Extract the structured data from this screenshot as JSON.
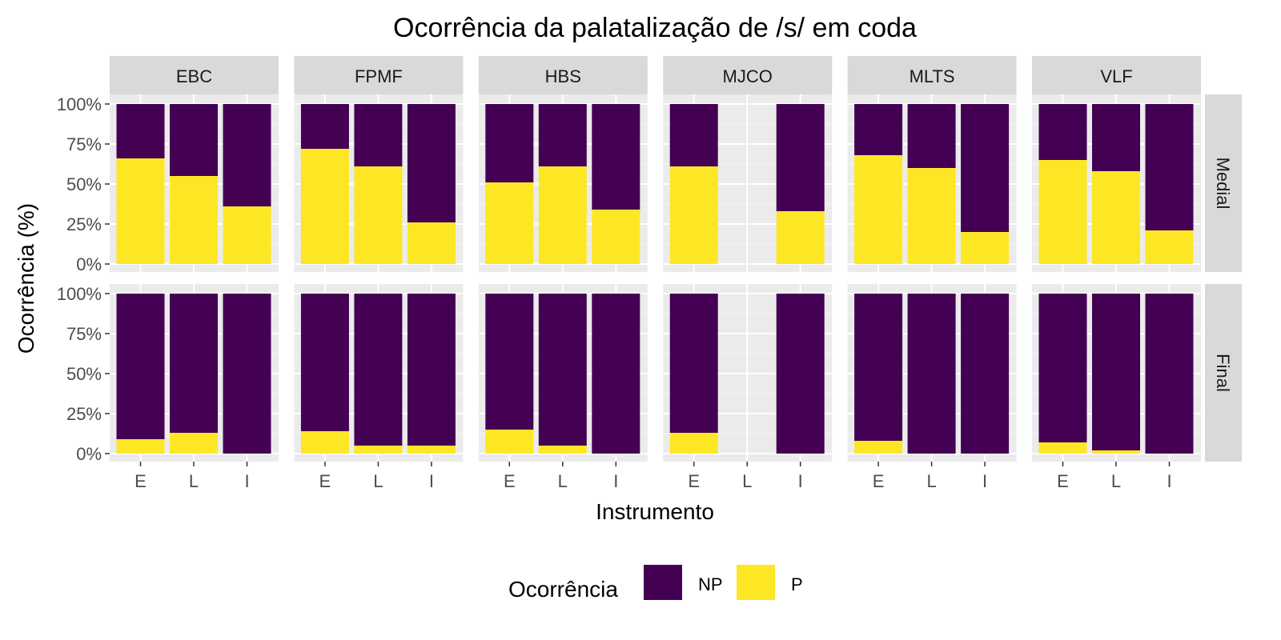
{
  "chart_data": {
    "type": "bar",
    "stacked": true,
    "faceted": true,
    "title": "Ocorrência da palatalização de /s/ em coda",
    "xlabel": "Instrumento",
    "ylabel": "Ocorrência (%)",
    "categories": [
      "E",
      "L",
      "I"
    ],
    "y_ticks": [
      "0%",
      "25%",
      "50%",
      "75%",
      "100%"
    ],
    "ylim": [
      0,
      100
    ],
    "grid": true,
    "legend": {
      "title": "Ocorrência",
      "position": "bottom",
      "entries": [
        {
          "name": "NP",
          "color": "#440154"
        },
        {
          "name": "P",
          "color": "#FDE725"
        }
      ]
    },
    "facet_cols": [
      "EBC",
      "FPMF",
      "HBS",
      "MJCO",
      "MLTS",
      "VLF"
    ],
    "facet_rows": [
      "Medial",
      "Final"
    ],
    "series_note": "values give the percentage of P; NP is the remainder up to 100%",
    "p_values": {
      "Medial": {
        "EBC": [
          66,
          55,
          36
        ],
        "FPMF": [
          72,
          61,
          26
        ],
        "HBS": [
          51,
          61,
          34
        ],
        "MJCO": [
          61,
          null,
          33
        ],
        "MLTS": [
          68,
          60,
          20
        ],
        "VLF": [
          65,
          58,
          21
        ]
      },
      "Final": {
        "EBC": [
          9,
          13,
          0
        ],
        "FPMF": [
          14,
          5,
          5
        ],
        "HBS": [
          15,
          5,
          0
        ],
        "MJCO": [
          13,
          null,
          0
        ],
        "MLTS": [
          8,
          0,
          0
        ],
        "VLF": [
          7,
          2,
          0
        ]
      }
    }
  }
}
